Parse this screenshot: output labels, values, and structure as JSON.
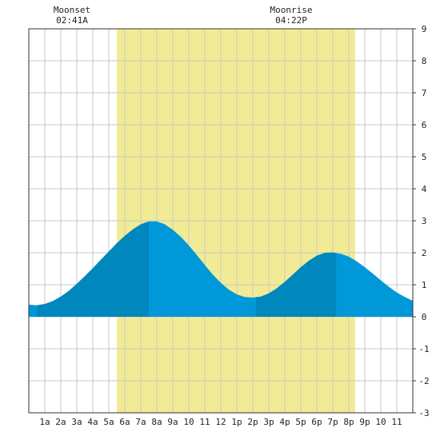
{
  "chart_data": {
    "type": "area",
    "title": "",
    "xlabel": "",
    "ylabel": "",
    "x_tick_labels": [
      "1a",
      "2a",
      "3a",
      "4a",
      "5a",
      "6a",
      "7a",
      "8a",
      "9a",
      "10",
      "11",
      "12",
      "1p",
      "2p",
      "3p",
      "4p",
      "5p",
      "6p",
      "7p",
      "8p",
      "9p",
      "10",
      "11"
    ],
    "xlim": [
      0,
      24
    ],
    "ylim": [
      -3,
      9
    ],
    "y_ticks": [
      -3,
      -2,
      -1,
      0,
      1,
      2,
      3,
      4,
      5,
      6,
      7,
      8,
      9
    ],
    "grid": true,
    "daylight": {
      "start_hour": 5.5,
      "end_hour": 20.4
    },
    "tide_series": {
      "hours": [
        0,
        0.5,
        1,
        1.5,
        2,
        2.5,
        3,
        3.5,
        4,
        4.5,
        5,
        5.5,
        6,
        6.5,
        7,
        7.5,
        8,
        8.5,
        9,
        9.5,
        10,
        10.5,
        11,
        11.5,
        12,
        12.5,
        13,
        13.5,
        14,
        14.5,
        15,
        15.5,
        16,
        16.5,
        17,
        17.5,
        18,
        18.5,
        19,
        19.5,
        20,
        20.5,
        21,
        21.5,
        22,
        22.5,
        23,
        23.5,
        24
      ],
      "heights": [
        0.38,
        0.36,
        0.4,
        0.49,
        0.63,
        0.81,
        1.03,
        1.27,
        1.52,
        1.78,
        2.04,
        2.3,
        2.53,
        2.73,
        2.89,
        2.98,
        2.98,
        2.89,
        2.72,
        2.5,
        2.23,
        1.93,
        1.62,
        1.32,
        1.06,
        0.85,
        0.7,
        0.62,
        0.6,
        0.63,
        0.73,
        0.89,
        1.09,
        1.32,
        1.55,
        1.75,
        1.91,
        2.0,
        2.01,
        1.97,
        1.88,
        1.73,
        1.55,
        1.35,
        1.14,
        0.94,
        0.76,
        0.62,
        0.5
      ]
    },
    "tide_fill_colors": [
      "#0087be",
      "#0098d8"
    ],
    "rising_fill_segments": [
      {
        "from_hour": 0.5,
        "to_hour": 7.5
      },
      {
        "from_hour": 14.2,
        "to_hour": 19.2
      }
    ],
    "moon_events": [
      {
        "name": "Moonset",
        "time": "02:41A",
        "hour": 2.7
      },
      {
        "name": "Moonrise",
        "time": "04:22P",
        "hour": 16.4
      }
    ],
    "colors": {
      "daylight": "#f2eb95",
      "grid": "#c8c8c8",
      "axis": "#333333"
    }
  }
}
